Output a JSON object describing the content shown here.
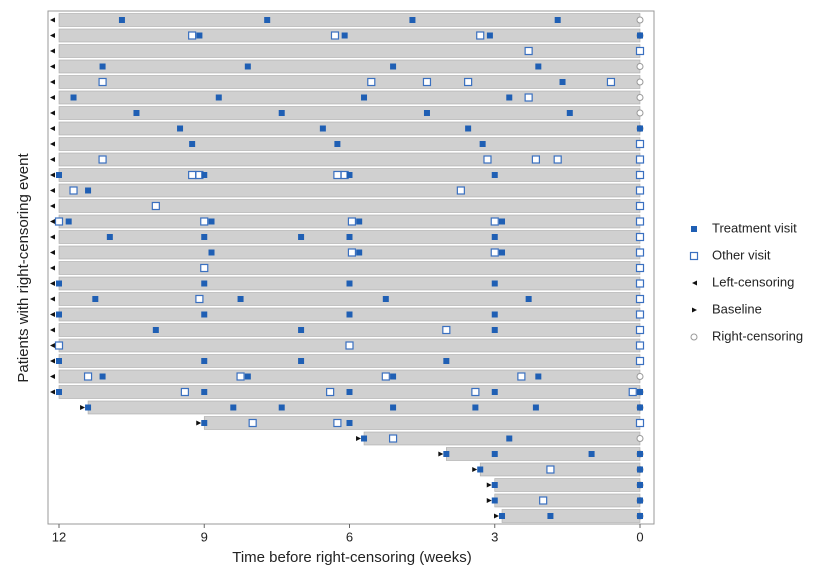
{
  "chart_data": {
    "type": "event-timeline",
    "xlabel": "Time before right-censoring (weeks)",
    "ylabel": "Patients with right-censoring event",
    "xlim": [
      12,
      0
    ],
    "xticks": [
      12,
      9,
      6,
      3,
      0
    ],
    "bar_color": "#d0d0d0",
    "legend": [
      {
        "name": "Treatment visit",
        "marker": "filled-square",
        "color": "#1f5fb4"
      },
      {
        "name": "Other visit",
        "marker": "hollow-square",
        "color": "#3a70c0"
      },
      {
        "name": "Left-censoring",
        "marker": "left-triangle",
        "color": "#111111"
      },
      {
        "name": "Baseline",
        "marker": "right-triangle",
        "color": "#111111"
      },
      {
        "name": "Right-censoring",
        "marker": "hollow-circle",
        "color": "#999999"
      }
    ],
    "rows": [
      {
        "start": 12,
        "start_kind": "left",
        "end": 0,
        "treatment": [
          10.7,
          7.7,
          4.7,
          1.7
        ],
        "other": []
      },
      {
        "start": 12,
        "start_kind": "left",
        "end": 0,
        "treatment": [
          9.1,
          6.1,
          3.1,
          0
        ],
        "other": [
          9.25,
          6.3,
          3.3
        ]
      },
      {
        "start": 12,
        "start_kind": "left",
        "end": 0,
        "treatment": [],
        "other": [
          2.3,
          0
        ]
      },
      {
        "start": 12,
        "start_kind": "left",
        "end": 0,
        "treatment": [
          11.1,
          8.1,
          5.1,
          2.1
        ],
        "other": []
      },
      {
        "start": 12,
        "start_kind": "left",
        "end": 0,
        "treatment": [
          1.6
        ],
        "other": [
          11.1,
          5.55,
          4.4,
          3.55,
          0.6
        ]
      },
      {
        "start": 12,
        "start_kind": "left",
        "end": 0,
        "treatment": [
          11.7,
          8.7,
          5.7,
          2.7
        ],
        "other": [
          2.3
        ]
      },
      {
        "start": 12,
        "start_kind": "left",
        "end": 0,
        "treatment": [
          10.4,
          7.4,
          4.4,
          1.45
        ],
        "other": []
      },
      {
        "start": 12,
        "start_kind": "left",
        "end": 0,
        "treatment": [
          9.5,
          6.55,
          3.55,
          0
        ],
        "other": []
      },
      {
        "start": 12,
        "start_kind": "left",
        "end": 0,
        "treatment": [
          9.25,
          6.25,
          3.25
        ],
        "other": [
          0
        ]
      },
      {
        "start": 12,
        "start_kind": "left",
        "end": 0,
        "treatment": [],
        "other": [
          11.1,
          3.15,
          2.15,
          1.7,
          0
        ]
      },
      {
        "start": 12,
        "start_kind": "left",
        "end": 0,
        "treatment": [
          12,
          9.0,
          6.0,
          3.0
        ],
        "other": [
          9.25,
          9.1,
          6.25,
          6.1,
          0
        ]
      },
      {
        "start": 12,
        "start_kind": "left",
        "end": 0,
        "treatment": [
          11.4
        ],
        "other": [
          11.7,
          3.7,
          0
        ]
      },
      {
        "start": 12,
        "start_kind": "left",
        "end": 0,
        "treatment": [],
        "other": [
          10.0,
          0
        ]
      },
      {
        "start": 12,
        "start_kind": "left",
        "end": 0,
        "treatment": [
          11.8,
          8.85,
          5.8,
          2.85
        ],
        "other": [
          12,
          9.0,
          5.95,
          3.0,
          0
        ]
      },
      {
        "start": 12,
        "start_kind": "left",
        "end": 0,
        "treatment": [
          10.95,
          9.0,
          7.0,
          6.0,
          3.0
        ],
        "other": [
          0
        ]
      },
      {
        "start": 12,
        "start_kind": "left",
        "end": 0,
        "treatment": [
          8.85,
          5.8,
          2.85
        ],
        "other": [
          5.95,
          3.0,
          0
        ]
      },
      {
        "start": 12,
        "start_kind": "left",
        "end": 0,
        "treatment": [],
        "other": [
          9.0,
          0
        ]
      },
      {
        "start": 12,
        "start_kind": "left",
        "end": 0,
        "treatment": [
          12,
          9.0,
          6.0,
          3.0
        ],
        "other": [
          0
        ]
      },
      {
        "start": 12,
        "start_kind": "left",
        "end": 0,
        "treatment": [
          11.25,
          8.25,
          5.25,
          2.3
        ],
        "other": [
          9.1,
          0
        ]
      },
      {
        "start": 12,
        "start_kind": "left",
        "end": 0,
        "treatment": [
          12,
          9.0,
          6.0,
          3.0
        ],
        "other": [
          0
        ]
      },
      {
        "start": 12,
        "start_kind": "left",
        "end": 0,
        "treatment": [
          10.0,
          7.0,
          3.0
        ],
        "other": [
          4.0,
          0
        ]
      },
      {
        "start": 12,
        "start_kind": "left",
        "end": 0,
        "treatment": [],
        "other": [
          12,
          6.0,
          0
        ]
      },
      {
        "start": 12,
        "start_kind": "left",
        "end": 0,
        "treatment": [
          12,
          9.0,
          7.0,
          4.0
        ],
        "other": [
          0
        ]
      },
      {
        "start": 12,
        "start_kind": "left",
        "end": 0,
        "treatment": [
          11.1,
          8.1,
          5.1,
          2.1
        ],
        "other": [
          11.4,
          8.25,
          5.25,
          2.45
        ]
      },
      {
        "start": 12,
        "start_kind": "left",
        "end": 0,
        "treatment": [
          12,
          9.0,
          6.0,
          3.0,
          0
        ],
        "other": [
          9.4,
          6.4,
          3.4,
          0.15
        ]
      },
      {
        "start": 11.4,
        "start_kind": "baseline",
        "end": 0,
        "treatment": [
          11.4,
          8.4,
          7.4,
          5.1,
          3.4,
          2.15,
          0
        ],
        "other": []
      },
      {
        "start": 9.0,
        "start_kind": "baseline",
        "end": 0,
        "treatment": [
          9.0,
          6.0
        ],
        "other": [
          8.0,
          6.25,
          0
        ]
      },
      {
        "start": 5.7,
        "start_kind": "baseline",
        "end": 0,
        "treatment": [
          5.7,
          2.7
        ],
        "other": [
          5.1
        ]
      },
      {
        "start": 4.0,
        "start_kind": "baseline",
        "end": 0,
        "treatment": [
          4.0,
          3.0,
          1.0,
          0
        ],
        "other": []
      },
      {
        "start": 3.3,
        "start_kind": "baseline",
        "end": 0,
        "treatment": [
          3.3,
          0
        ],
        "other": [
          1.85
        ]
      },
      {
        "start": 3.0,
        "start_kind": "baseline",
        "end": 0,
        "treatment": [
          3.0,
          0
        ],
        "other": []
      },
      {
        "start": 3.0,
        "start_kind": "baseline",
        "end": 0,
        "treatment": [
          3.0,
          0
        ],
        "other": [
          2.0
        ]
      },
      {
        "start": 2.85,
        "start_kind": "baseline",
        "end": 0,
        "treatment": [
          2.85,
          1.85,
          0
        ],
        "other": []
      }
    ]
  }
}
